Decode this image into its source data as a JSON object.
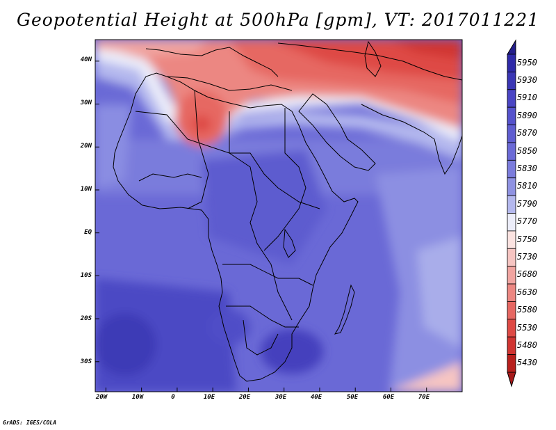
{
  "title": "Geopotential Height at 500hPa [gpm], VT: 2017011221",
  "credit": "GrADS: IGES/COLA",
  "map": {
    "lat_labels": [
      "40N",
      "30N",
      "20N",
      "10N",
      "EQ",
      "10S",
      "20S",
      "30S"
    ],
    "lon_labels": [
      "20W",
      "10W",
      "0",
      "10E",
      "20E",
      "30E",
      "40E",
      "50E",
      "60E",
      "70E"
    ],
    "lat_values": [
      40,
      30,
      20,
      10,
      0,
      -10,
      -20,
      -30
    ],
    "lon_values": [
      -20,
      -10,
      0,
      10,
      20,
      30,
      40,
      50,
      60,
      70
    ],
    "lat_range": [
      -37,
      45
    ],
    "lon_range": [
      -23,
      80
    ]
  },
  "colorbar": {
    "labels": [
      "5950",
      "5930",
      "5910",
      "5890",
      "5870",
      "5850",
      "5830",
      "5810",
      "5790",
      "5770",
      "5750",
      "5730",
      "5680",
      "5630",
      "5580",
      "5530",
      "5480",
      "5430"
    ],
    "colors": [
      "#2f2aa8",
      "#3a36b4",
      "#4a45c4",
      "#5552cc",
      "#5f5dd0",
      "#6b6ad6",
      "#7b7cdc",
      "#8f92e2",
      "#b4b8ee",
      "#ecedf9",
      "#fbe3e1",
      "#f6c5c2",
      "#f1a5a1",
      "#ec8782",
      "#e66762",
      "#de4a45",
      "#d03532",
      "#b8201d"
    ],
    "top_color": "#241e8c",
    "bottom_color": "#a6191a"
  }
}
